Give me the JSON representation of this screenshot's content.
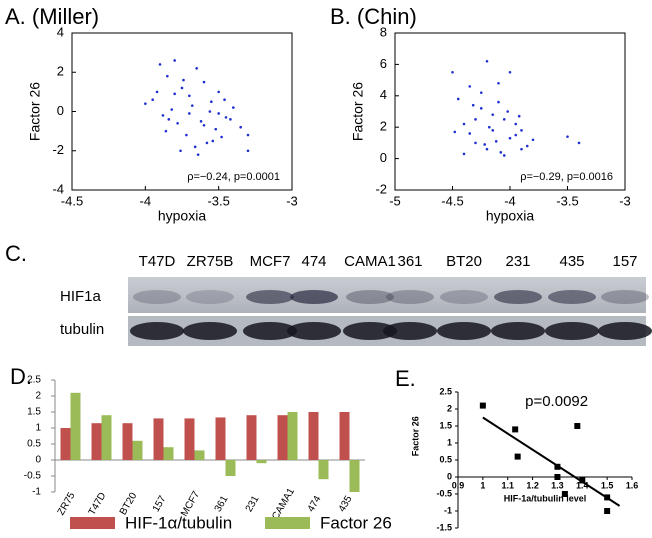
{
  "chart_data": [
    {
      "type": "scatter",
      "title": "A. (Miller)",
      "x_label": "hypoxia",
      "y_label": "Factor 26",
      "annotation": "ρ=−0.24, p=0.0001",
      "color": "#1f2fd0",
      "xlim": [
        -4.5,
        -3
      ],
      "xticks": [
        -4.5,
        -4,
        -3.5,
        -3
      ],
      "ylim": [
        -4,
        4
      ],
      "yticks": [
        -4,
        -2,
        0,
        2,
        4
      ],
      "x": [
        -3.9,
        -3.85,
        -3.8,
        -3.75,
        -3.7,
        -3.65,
        -3.6,
        -3.55,
        -3.5,
        -3.45,
        -3.4,
        -3.35,
        -3.95,
        -3.88,
        -3.82,
        -3.78,
        -3.72,
        -3.68,
        -3.62,
        -3.58,
        -3.52,
        -3.48,
        -3.42,
        -3.3,
        -4.0,
        -3.86,
        -3.76,
        -3.66,
        -3.56,
        -3.46,
        -3.8,
        -3.7,
        -3.6,
        -3.74,
        -3.64,
        -3.84,
        -3.54,
        -3.92,
        -3.5,
        -3.3
      ],
      "values": [
        2.4,
        1.8,
        2.6,
        1.2,
        0.8,
        2.2,
        1.5,
        0.5,
        1.0,
        -0.3,
        0.2,
        -0.8,
        0.6,
        -0.2,
        0.1,
        -0.6,
        -1.2,
        0.3,
        -0.5,
        -1.6,
        -0.9,
        -1.3,
        -0.4,
        -1.2,
        0.4,
        -1.0,
        -2.0,
        -1.8,
        0.0,
        0.6,
        0.9,
        -0.1,
        -0.7,
        1.6,
        -2.2,
        -0.4,
        -1.5,
        1.0,
        -0.1,
        -2.0
      ]
    },
    {
      "type": "scatter",
      "title": "B. (Chin)",
      "x_label": "hypoxia",
      "y_label": "Factor 26",
      "annotation": "ρ=−0.29, p=0.0016",
      "color": "#1f2fd0",
      "xlim": [
        -5,
        -3
      ],
      "xticks": [
        -5,
        -4.5,
        -4,
        -3.5,
        -3
      ],
      "ylim": [
        -2,
        8
      ],
      "yticks": [
        -2,
        0,
        2,
        4,
        6,
        8
      ],
      "x": [
        -4.5,
        -4.45,
        -4.4,
        -4.35,
        -4.3,
        -4.25,
        -4.2,
        -4.15,
        -4.1,
        -4.05,
        -4.0,
        -3.95,
        -3.9,
        -3.85,
        -3.8,
        -4.4,
        -4.3,
        -4.2,
        -4.1,
        -4.0,
        -3.9,
        -4.35,
        -4.25,
        -4.15,
        -4.05,
        -3.95,
        -3.5,
        -3.4,
        -4.48,
        -4.22,
        -4.12,
        -4.02,
        -3.92,
        -4.32,
        -4.18,
        -4.08
      ],
      "values": [
        5.5,
        3.8,
        2.2,
        4.6,
        1.0,
        3.2,
        6.2,
        1.8,
        4.8,
        2.5,
        1.3,
        2.2,
        1.8,
        0.8,
        1.2,
        0.3,
        2.5,
        0.6,
        3.6,
        5.5,
        0.6,
        1.6,
        4.2,
        2.8,
        0.2,
        1.5,
        1.4,
        1.0,
        1.7,
        0.9,
        1.1,
        3.0,
        2.7,
        3.4,
        2.0,
        0.4
      ]
    },
    {
      "type": "bar",
      "title": "D.",
      "categories": [
        "ZR75",
        "T47D",
        "BT20",
        "157",
        "MCF7",
        "361",
        "231",
        "CAMA1",
        "474",
        "435"
      ],
      "ylim": [
        -1,
        2.5
      ],
      "yticks": [
        -1,
        -0.5,
        0,
        0.5,
        1,
        1.5,
        2,
        2.5
      ],
      "series": [
        {
          "name": "HIF-1α/tubulin",
          "color": "#c0504d",
          "values": [
            1.0,
            1.15,
            1.15,
            1.3,
            1.3,
            1.33,
            1.4,
            1.4,
            1.5,
            1.5
          ]
        },
        {
          "name": "Factor 26",
          "color": "#9bbb59",
          "values": [
            2.1,
            1.4,
            0.6,
            0.4,
            0.3,
            -0.5,
            -0.1,
            1.5,
            -0.6,
            -1.0
          ]
        }
      ]
    },
    {
      "type": "scatter-fit",
      "title": "E.",
      "x_label": "HIF-1a/tubulin level",
      "y_label": "Factor 26",
      "annotation": "p=0.0092",
      "color": "#000000",
      "xlim": [
        0.9,
        1.6
      ],
      "xticks": [
        0.9,
        1,
        1.1,
        1.2,
        1.3,
        1.4,
        1.5,
        1.6
      ],
      "ylim": [
        -1.5,
        2.5
      ],
      "yticks": [
        -1.5,
        -1,
        -0.5,
        0,
        0.5,
        1,
        1.5,
        2,
        2.5
      ],
      "x": [
        1.0,
        1.13,
        1.14,
        1.3,
        1.3,
        1.33,
        1.38,
        1.4,
        1.5,
        1.5
      ],
      "values": [
        2.1,
        1.4,
        0.6,
        0.3,
        0.0,
        -0.5,
        1.5,
        -0.1,
        -0.6,
        -1.0
      ],
      "fit_line": {
        "x": [
          1.0,
          1.55
        ],
        "values": [
          1.75,
          -0.85
        ]
      }
    }
  ],
  "blot": {
    "label": "C.",
    "lanes": [
      "T47D",
      "ZR75B",
      "MCF7",
      "474",
      "CAMA1",
      "361",
      "BT20",
      "231",
      "435",
      "157"
    ],
    "rows": [
      "HIF1a",
      "tubulin"
    ]
  }
}
